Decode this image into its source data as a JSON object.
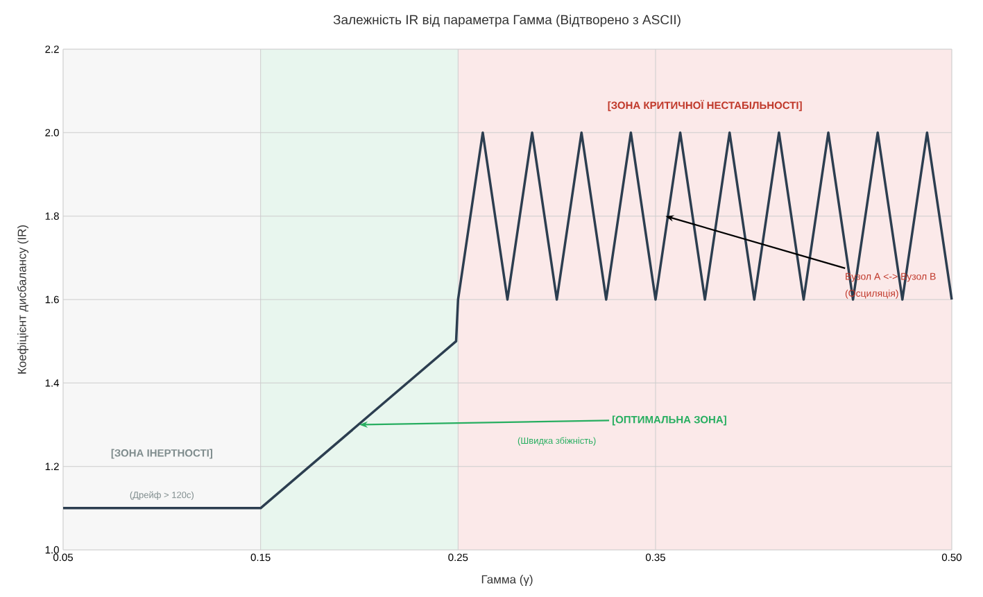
{
  "chart_data": {
    "type": "line",
    "title": "Залежність IR від параметра Гамма (Відтворено з ASCII)",
    "xlabel": "Гамма (γ)",
    "ylabel": "Коефіцієнт дисбалансу (IR)",
    "series": [
      {
        "color": "#2c3e50",
        "line_style": "solid",
        "x": [
          0.05,
          0.15,
          0.249,
          0.25,
          0.2625,
          0.275,
          0.2875,
          0.3,
          0.3125,
          0.325,
          0.3375,
          0.35,
          0.3625,
          0.375,
          0.3875,
          0.4,
          0.4125,
          0.425,
          0.4375,
          0.45,
          0.4625,
          0.475,
          0.4875,
          0.5
        ],
        "values": [
          1.1,
          1.1,
          1.5,
          1.6,
          2.0,
          1.6,
          2.0,
          1.6,
          2.0,
          1.6,
          2.0,
          1.6,
          2.0,
          1.6,
          2.0,
          1.6,
          2.0,
          1.6,
          2.0,
          1.6,
          2.0,
          1.6,
          2.0,
          1.6
        ]
      }
    ],
    "xlim": [
      0.05,
      0.5
    ],
    "ylim": [
      1.0,
      2.2
    ],
    "xticks": [
      0.05,
      0.15,
      0.25,
      0.35,
      {
        "value": 0.5,
        "label": "0.50"
      }
    ],
    "yticks": [
      {
        "value": 1.0,
        "label": "1.0"
      },
      1.2,
      1.4,
      1.6,
      1.8,
      {
        "value": 2.0,
        "label": "2.0"
      },
      2.2
    ],
    "grid": true,
    "bands": [
      {
        "axis": "x",
        "from": 0.05,
        "to": 0.15,
        "label": "[ЗОНА ІНЕРТНОСТІ]",
        "color": "#f7f7f7"
      },
      {
        "axis": "x",
        "from": 0.15,
        "to": 0.25,
        "color": "#e8f6ee"
      },
      {
        "axis": "x",
        "from": 0.25,
        "to": 0.5,
        "label": "[ЗОНА КРИТИЧНОЇ НЕСТАБІЛЬНОСТІ]",
        "color": "#fbe9e9"
      }
    ],
    "annotations": [
      "(Дрейф > 120с)",
      {
        "text": "[ОПТИМАЛЬНА ЗОНА]",
        "x": 0.2,
        "y": 1.3
      },
      "(Швидка збіжність)",
      {
        "text": "Вузол A <-> Вузол B",
        "x": 0.355,
        "y": 1.8
      },
      "(Осциляція)"
    ]
  }
}
